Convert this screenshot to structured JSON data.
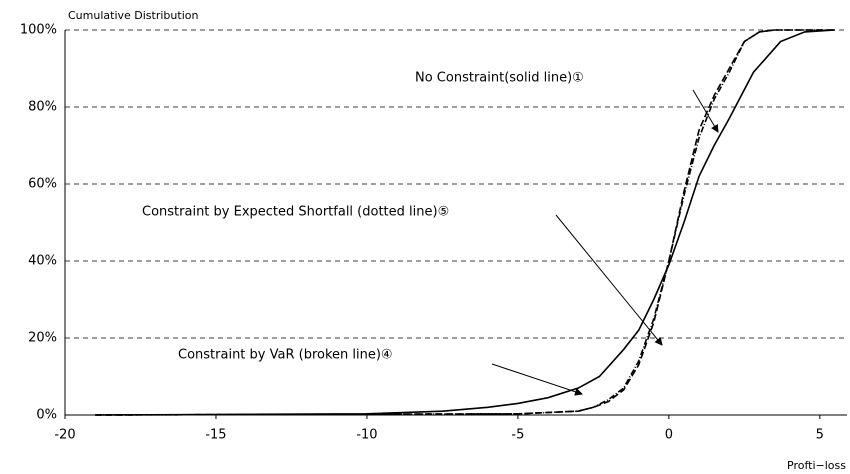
{
  "chart_data": {
    "type": "line",
    "y_axis_label": "Cumulative Distribution",
    "x_axis_label": "Profti−loss",
    "xlim": [
      -20,
      5.9
    ],
    "xticks": [
      -20,
      -15,
      -10,
      -5,
      0,
      5
    ],
    "ylim": [
      0,
      100
    ],
    "yticks": [
      {
        "value": 0,
        "label": "0%"
      },
      {
        "value": 20,
        "label": "20%"
      },
      {
        "value": 40,
        "label": "40%"
      },
      {
        "value": 60,
        "label": "60%"
      },
      {
        "value": 80,
        "label": "80%"
      },
      {
        "value": 100,
        "label": "100%"
      }
    ],
    "grid": true,
    "series": [
      {
        "name": "No Constraint(solid line)①",
        "color": "#000000",
        "line_style": "solid",
        "x": [
          -19,
          -10,
          -7.5,
          -6,
          -5,
          -4,
          -3,
          -2.3,
          -1.5,
          -1,
          -0.5,
          0,
          0.5,
          1,
          1.5,
          2,
          2.8,
          3.7,
          4.5,
          5.5
        ],
        "values": [
          0,
          0.3,
          1,
          2,
          3,
          4.5,
          7,
          10,
          17,
          22,
          30,
          39,
          50,
          62,
          70,
          77,
          89,
          97,
          99.5,
          100
        ]
      },
      {
        "name": "Constraint by Expected Shortfall (dotted line)⑤",
        "color": "#000000",
        "line_style": "dotted",
        "x": [
          -19,
          -5,
          -3,
          -2.5,
          -2,
          -1.5,
          -1,
          -0.5,
          0,
          0.5,
          1,
          1.5,
          2,
          2.5,
          3,
          3.5,
          5.5
        ],
        "values": [
          0,
          0.3,
          1,
          2,
          4,
          7,
          14,
          25,
          40,
          57,
          72,
          82,
          89,
          97,
          99.5,
          100,
          100
        ]
      },
      {
        "name": "Constraint by VaR (broken line)④",
        "color": "#000000",
        "line_style": "dashed",
        "x": [
          -19,
          -5,
          -3,
          -2.5,
          -2,
          -1.5,
          -1,
          -0.5,
          0,
          0.5,
          1,
          1.5,
          2,
          2.5,
          3,
          3.5,
          5.5
        ],
        "values": [
          0,
          0.3,
          1,
          2,
          3.5,
          6.5,
          13,
          24,
          40,
          58,
          74,
          83,
          90,
          97,
          99.5,
          100,
          100
        ]
      }
    ]
  }
}
